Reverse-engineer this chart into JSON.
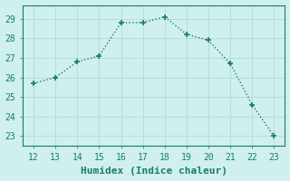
{
  "x": [
    12,
    13,
    14,
    15,
    16,
    17,
    18,
    19,
    20,
    21,
    22,
    23
  ],
  "y": [
    25.7,
    26.0,
    26.8,
    27.1,
    28.8,
    28.8,
    29.1,
    28.2,
    27.9,
    26.7,
    24.6,
    23.0
  ],
  "line_color": "#1a7a6e",
  "marker": "+",
  "marker_size": 5,
  "line_width": 1.0,
  "background_color": "#cff0ec",
  "grid_color": "#b8ddd8",
  "xlabel": "Humidex (Indice chaleur)",
  "xlabel_fontsize": 8,
  "tick_fontsize": 7,
  "ylim": [
    22.5,
    29.7
  ],
  "xlim": [
    11.5,
    23.5
  ],
  "yticks": [
    23,
    24,
    25,
    26,
    27,
    28,
    29
  ],
  "xticks": [
    12,
    13,
    14,
    15,
    16,
    17,
    18,
    19,
    20,
    21,
    22,
    23
  ]
}
